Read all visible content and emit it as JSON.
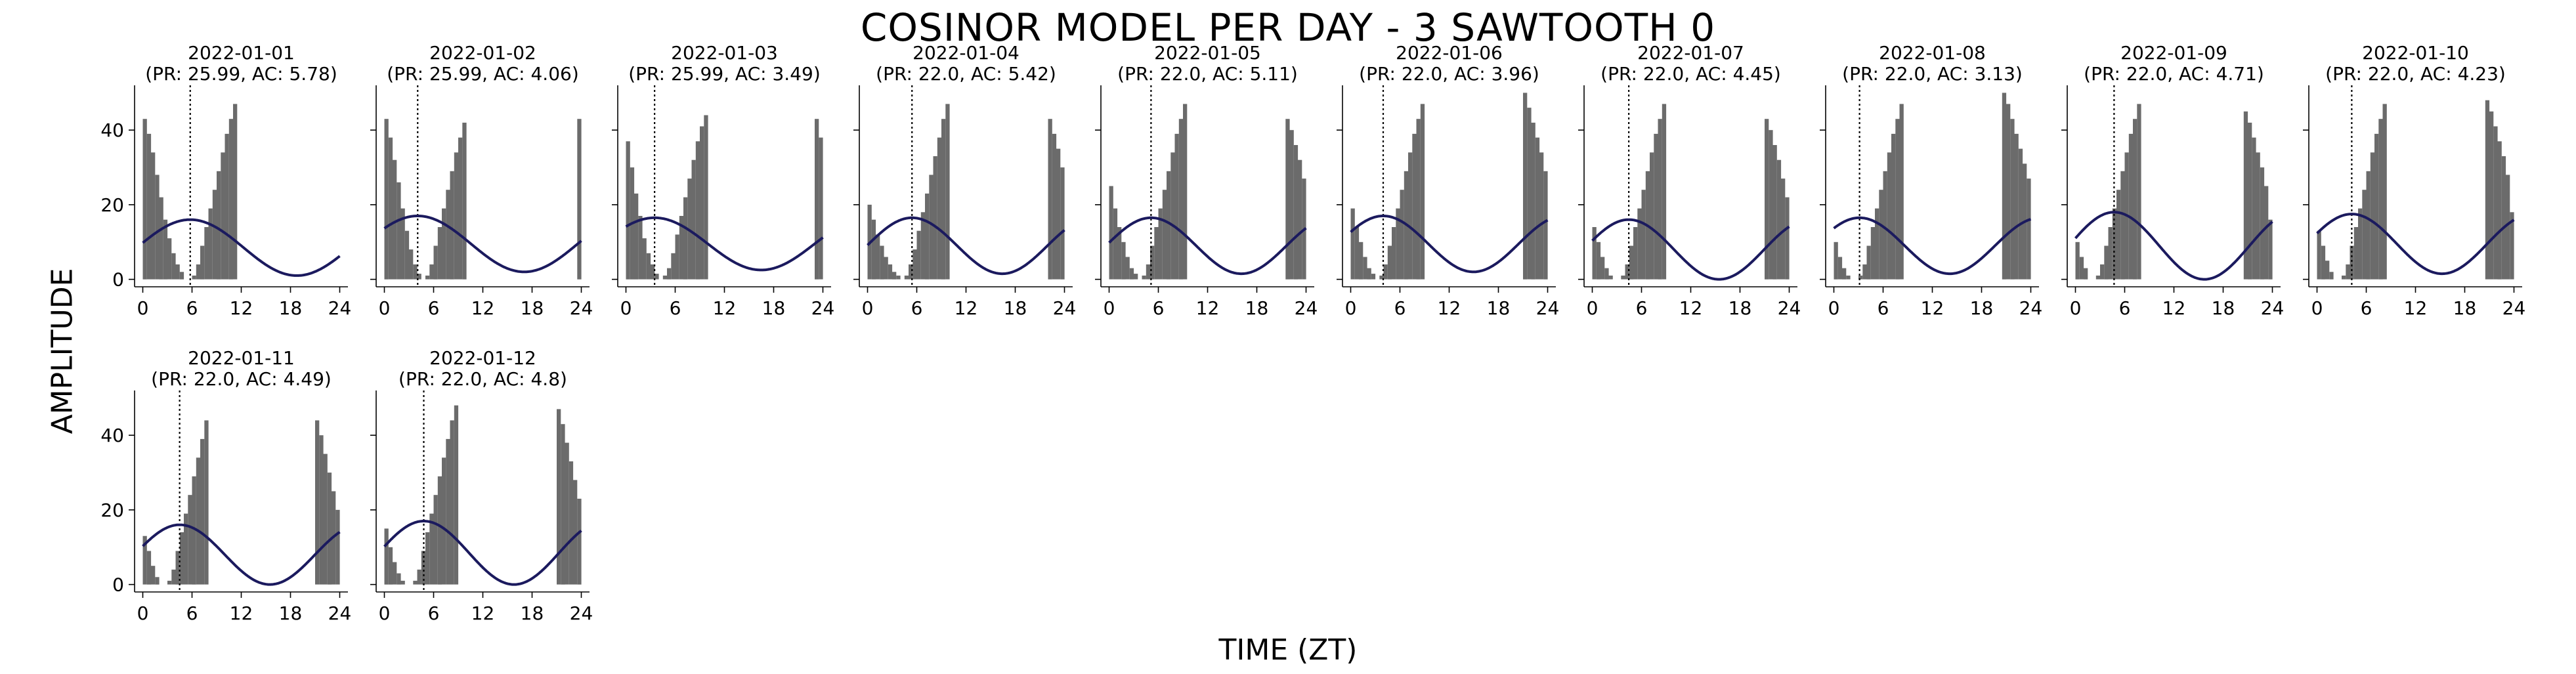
{
  "figure": {
    "title": "COSINOR MODEL PER DAY - 3 SAWTOOTH 0",
    "xlabel": "TIME (ZT)",
    "ylabel": "AMPLITUDE"
  },
  "colors": {
    "bars": "#6b6b6b",
    "curve": "#1b1a5e",
    "acrophase_line": "#000000",
    "axes": "#000000"
  },
  "chart_data": {
    "type": "bar",
    "description_of_layers": "histogram bars with fitted cosinor curve and dotted acrophase line per day",
    "x_ticks": [
      0,
      6,
      12,
      18,
      24
    ],
    "y_ticks": [
      0,
      20,
      40
    ],
    "xlim": [
      -1,
      25
    ],
    "ylim": [
      -2,
      52
    ],
    "bar_width": 0.5,
    "grid": false,
    "panels": [
      {
        "title_date": "2022-01-01",
        "title_params": "(PR: 25.99, AC: 5.78)",
        "acrophase": 5.78,
        "period": 25.99,
        "mesor": 8.5,
        "amplitude": 7.5,
        "bars": [
          [
            0.25,
            43
          ],
          [
            0.75,
            39
          ],
          [
            1.25,
            34
          ],
          [
            1.75,
            28
          ],
          [
            2.25,
            22
          ],
          [
            2.75,
            16
          ],
          [
            3.25,
            11
          ],
          [
            3.75,
            7
          ],
          [
            4.25,
            4
          ],
          [
            4.75,
            2
          ],
          [
            6.25,
            1
          ],
          [
            6.75,
            4
          ],
          [
            7.25,
            9
          ],
          [
            7.75,
            14
          ],
          [
            8.25,
            19
          ],
          [
            8.75,
            24
          ],
          [
            9.25,
            29
          ],
          [
            9.75,
            34
          ],
          [
            10.25,
            39
          ],
          [
            10.75,
            43
          ],
          [
            11.25,
            47
          ]
        ]
      },
      {
        "title_date": "2022-01-02",
        "title_params": "(PR: 25.99, AC: 4.06)",
        "acrophase": 4.06,
        "period": 25.99,
        "mesor": 9.5,
        "amplitude": 7.5,
        "bars": [
          [
            0.25,
            43
          ],
          [
            0.75,
            38
          ],
          [
            1.25,
            32
          ],
          [
            1.75,
            26
          ],
          [
            2.25,
            19
          ],
          [
            2.75,
            13
          ],
          [
            3.25,
            8
          ],
          [
            3.75,
            4
          ],
          [
            4.25,
            1.5
          ],
          [
            5.25,
            1
          ],
          [
            5.75,
            4
          ],
          [
            6.25,
            9
          ],
          [
            6.75,
            14
          ],
          [
            7.25,
            19
          ],
          [
            7.75,
            24
          ],
          [
            8.25,
            29
          ],
          [
            8.75,
            34
          ],
          [
            9.25,
            38
          ],
          [
            9.75,
            42
          ],
          [
            23.75,
            43
          ]
        ]
      },
      {
        "title_date": "2022-01-03",
        "title_params": "(PR: 25.99, AC: 3.49)",
        "acrophase": 3.49,
        "period": 25.99,
        "mesor": 9.5,
        "amplitude": 7.0,
        "bars": [
          [
            0.25,
            37
          ],
          [
            0.75,
            30
          ],
          [
            1.25,
            23
          ],
          [
            1.75,
            17
          ],
          [
            2.25,
            11
          ],
          [
            2.75,
            7
          ],
          [
            3.25,
            4
          ],
          [
            3.75,
            1.5
          ],
          [
            4.75,
            1
          ],
          [
            5.25,
            3
          ],
          [
            5.75,
            7
          ],
          [
            6.25,
            12
          ],
          [
            6.75,
            17
          ],
          [
            7.25,
            22
          ],
          [
            7.75,
            27
          ],
          [
            8.25,
            32
          ],
          [
            8.75,
            37
          ],
          [
            9.25,
            41
          ],
          [
            9.75,
            44
          ],
          [
            23.25,
            43
          ],
          [
            23.75,
            38
          ]
        ]
      },
      {
        "title_date": "2022-01-04",
        "title_params": "(PR: 22.0, AC: 5.42)",
        "acrophase": 5.42,
        "period": 22.0,
        "mesor": 9.0,
        "amplitude": 7.5,
        "bars": [
          [
            0.25,
            20
          ],
          [
            0.75,
            16
          ],
          [
            1.25,
            12
          ],
          [
            1.75,
            9
          ],
          [
            2.25,
            6
          ],
          [
            2.75,
            4
          ],
          [
            3.25,
            2
          ],
          [
            3.75,
            1
          ],
          [
            4.75,
            1
          ],
          [
            5.25,
            4
          ],
          [
            5.75,
            8
          ],
          [
            6.25,
            13
          ],
          [
            6.75,
            18
          ],
          [
            7.25,
            23
          ],
          [
            7.75,
            28
          ],
          [
            8.25,
            33
          ],
          [
            8.75,
            38
          ],
          [
            9.25,
            43
          ],
          [
            9.75,
            47
          ],
          [
            22.25,
            43
          ],
          [
            22.75,
            39
          ],
          [
            23.25,
            35
          ],
          [
            23.75,
            30
          ]
        ]
      },
      {
        "title_date": "2022-01-05",
        "title_params": "(PR: 22.0, AC: 5.11)",
        "acrophase": 5.11,
        "period": 22.0,
        "mesor": 9.0,
        "amplitude": 7.5,
        "bars": [
          [
            0.25,
            25
          ],
          [
            0.75,
            19
          ],
          [
            1.25,
            14
          ],
          [
            1.75,
            10
          ],
          [
            2.25,
            6
          ],
          [
            2.75,
            3
          ],
          [
            3.25,
            1.5
          ],
          [
            4.25,
            1
          ],
          [
            4.75,
            4
          ],
          [
            5.25,
            9
          ],
          [
            5.75,
            14
          ],
          [
            6.25,
            19
          ],
          [
            6.75,
            24
          ],
          [
            7.25,
            29
          ],
          [
            7.75,
            34
          ],
          [
            8.25,
            39
          ],
          [
            8.75,
            43
          ],
          [
            9.25,
            47
          ],
          [
            21.75,
            43
          ],
          [
            22.25,
            40
          ],
          [
            22.75,
            36
          ],
          [
            23.25,
            32
          ],
          [
            23.75,
            27
          ]
        ]
      },
      {
        "title_date": "2022-01-06",
        "title_params": "(PR: 22.0, AC: 3.96)",
        "acrophase": 3.96,
        "period": 22.0,
        "mesor": 9.5,
        "amplitude": 7.5,
        "bars": [
          [
            0.25,
            19
          ],
          [
            0.75,
            14
          ],
          [
            1.25,
            10
          ],
          [
            1.75,
            6
          ],
          [
            2.25,
            3
          ],
          [
            2.75,
            1.5
          ],
          [
            3.75,
            1
          ],
          [
            4.25,
            4
          ],
          [
            4.75,
            9
          ],
          [
            5.25,
            14
          ],
          [
            5.75,
            19
          ],
          [
            6.25,
            24
          ],
          [
            6.75,
            29
          ],
          [
            7.25,
            34
          ],
          [
            7.75,
            39
          ],
          [
            8.25,
            43
          ],
          [
            8.75,
            47
          ],
          [
            21.25,
            50
          ],
          [
            21.75,
            46
          ],
          [
            22.25,
            42
          ],
          [
            22.75,
            38
          ],
          [
            23.25,
            34
          ],
          [
            23.75,
            29
          ]
        ]
      },
      {
        "title_date": "2022-01-07",
        "title_params": "(PR: 22.0, AC: 4.45)",
        "acrophase": 4.45,
        "period": 22.0,
        "mesor": 8.0,
        "amplitude": 8.0,
        "bars": [
          [
            0.25,
            14
          ],
          [
            0.75,
            10
          ],
          [
            1.25,
            6
          ],
          [
            1.75,
            3
          ],
          [
            2.25,
            1
          ],
          [
            3.75,
            1
          ],
          [
            4.25,
            4
          ],
          [
            4.75,
            9
          ],
          [
            5.25,
            14
          ],
          [
            5.75,
            19
          ],
          [
            6.25,
            24
          ],
          [
            6.75,
            29
          ],
          [
            7.25,
            34
          ],
          [
            7.75,
            39
          ],
          [
            8.25,
            43
          ],
          [
            8.75,
            47
          ],
          [
            21.25,
            43
          ],
          [
            21.75,
            40
          ],
          [
            22.25,
            36
          ],
          [
            22.75,
            32
          ],
          [
            23.25,
            27
          ],
          [
            23.75,
            22
          ]
        ]
      },
      {
        "title_date": "2022-01-08",
        "title_params": "(PR: 22.0, AC: 3.13)",
        "acrophase": 3.13,
        "period": 22.0,
        "mesor": 9.0,
        "amplitude": 7.5,
        "bars": [
          [
            0.25,
            10
          ],
          [
            0.75,
            6
          ],
          [
            1.25,
            3
          ],
          [
            1.75,
            1
          ],
          [
            3.25,
            1
          ],
          [
            3.75,
            4
          ],
          [
            4.25,
            9
          ],
          [
            4.75,
            14
          ],
          [
            5.25,
            19
          ],
          [
            5.75,
            24
          ],
          [
            6.25,
            29
          ],
          [
            6.75,
            34
          ],
          [
            7.25,
            39
          ],
          [
            7.75,
            43
          ],
          [
            8.25,
            47
          ],
          [
            20.75,
            50
          ],
          [
            21.25,
            47
          ],
          [
            21.75,
            43
          ],
          [
            22.25,
            39
          ],
          [
            22.75,
            35
          ],
          [
            23.25,
            31
          ],
          [
            23.75,
            27
          ]
        ]
      },
      {
        "title_date": "2022-01-09",
        "title_params": "(PR: 22.0, AC: 4.71)",
        "acrophase": 4.71,
        "period": 22.0,
        "mesor": 9.0,
        "amplitude": 9.0,
        "bars": [
          [
            0.25,
            10
          ],
          [
            0.75,
            6
          ],
          [
            1.25,
            3
          ],
          [
            2.75,
            1
          ],
          [
            3.25,
            4
          ],
          [
            3.75,
            9
          ],
          [
            4.25,
            14
          ],
          [
            4.75,
            19
          ],
          [
            5.25,
            24
          ],
          [
            5.75,
            29
          ],
          [
            6.25,
            34
          ],
          [
            6.75,
            39
          ],
          [
            7.25,
            43
          ],
          [
            7.75,
            47
          ],
          [
            20.75,
            45
          ],
          [
            21.25,
            42
          ],
          [
            21.75,
            38
          ],
          [
            22.25,
            34
          ],
          [
            22.75,
            30
          ],
          [
            23.25,
            25
          ],
          [
            23.75,
            16
          ]
        ]
      },
      {
        "title_date": "2022-01-10",
        "title_params": "(PR: 22.0, AC: 4.23)",
        "acrophase": 4.23,
        "period": 22.0,
        "mesor": 9.5,
        "amplitude": 8.0,
        "bars": [
          [
            0.25,
            13
          ],
          [
            0.75,
            9
          ],
          [
            1.25,
            5
          ],
          [
            1.75,
            2
          ],
          [
            3.25,
            1
          ],
          [
            3.75,
            4
          ],
          [
            4.25,
            9
          ],
          [
            4.75,
            14
          ],
          [
            5.25,
            19
          ],
          [
            5.75,
            24
          ],
          [
            6.25,
            29
          ],
          [
            6.75,
            34
          ],
          [
            7.25,
            39
          ],
          [
            7.75,
            43
          ],
          [
            8.25,
            47
          ],
          [
            20.75,
            48
          ],
          [
            21.25,
            45
          ],
          [
            21.75,
            41
          ],
          [
            22.25,
            37
          ],
          [
            22.75,
            33
          ],
          [
            23.25,
            28
          ],
          [
            23.75,
            18
          ]
        ]
      },
      {
        "title_date": "2022-01-11",
        "title_params": "(PR: 22.0, AC: 4.49)",
        "acrophase": 4.49,
        "period": 22.0,
        "mesor": 8.0,
        "amplitude": 8.0,
        "bars": [
          [
            0.25,
            13
          ],
          [
            0.75,
            9
          ],
          [
            1.25,
            5
          ],
          [
            1.75,
            2
          ],
          [
            3.25,
            1
          ],
          [
            3.75,
            4
          ],
          [
            4.25,
            9
          ],
          [
            4.75,
            14
          ],
          [
            5.25,
            19
          ],
          [
            5.75,
            24
          ],
          [
            6.25,
            29
          ],
          [
            6.75,
            34
          ],
          [
            7.25,
            39
          ],
          [
            7.75,
            44
          ],
          [
            21.25,
            44
          ],
          [
            21.75,
            40
          ],
          [
            22.25,
            35
          ],
          [
            22.75,
            30
          ],
          [
            23.25,
            25
          ],
          [
            23.75,
            20
          ]
        ]
      },
      {
        "title_date": "2022-01-12",
        "title_params": "(PR: 22.0, AC: 4.8)",
        "acrophase": 4.8,
        "period": 22.0,
        "mesor": 8.5,
        "amplitude": 8.5,
        "bars": [
          [
            0.25,
            15
          ],
          [
            0.75,
            10
          ],
          [
            1.25,
            6
          ],
          [
            1.75,
            3
          ],
          [
            2.25,
            1
          ],
          [
            3.75,
            1
          ],
          [
            4.25,
            4
          ],
          [
            4.75,
            9
          ],
          [
            5.25,
            14
          ],
          [
            5.75,
            19
          ],
          [
            6.25,
            24
          ],
          [
            6.75,
            29
          ],
          [
            7.25,
            34
          ],
          [
            7.75,
            39
          ],
          [
            8.25,
            44
          ],
          [
            8.75,
            48
          ],
          [
            21.25,
            47
          ],
          [
            21.75,
            43
          ],
          [
            22.25,
            38
          ],
          [
            22.75,
            33
          ],
          [
            23.25,
            28
          ],
          [
            23.75,
            23
          ]
        ]
      }
    ]
  }
}
